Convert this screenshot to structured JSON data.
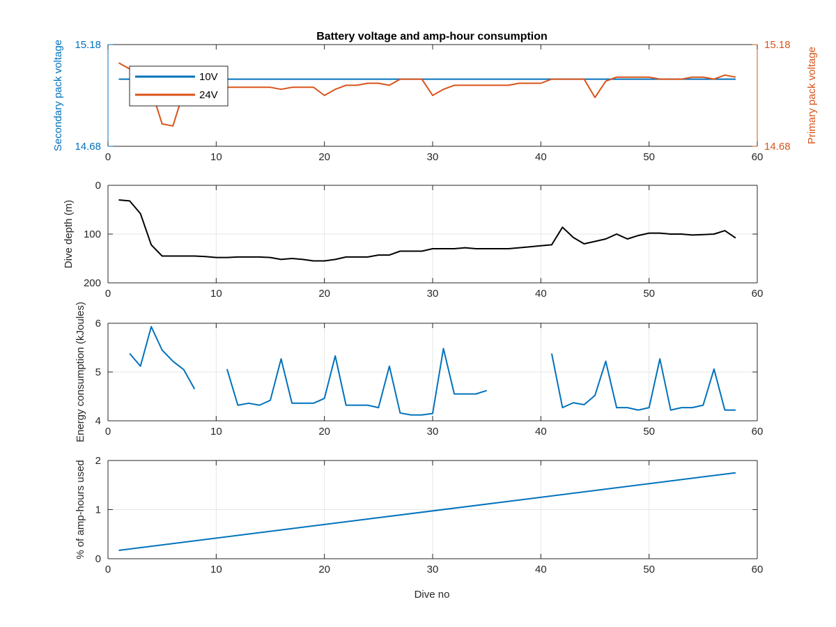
{
  "figure": {
    "title": "Battery voltage and amp-hour consumption",
    "xlabel": "Dive no"
  },
  "colors": {
    "blue": "#0072bd",
    "orange": "#d95319",
    "black": "#000000",
    "grid": "#e6e6e6",
    "axis": "#262626"
  },
  "chart_data": [
    {
      "type": "line",
      "title": "Battery voltage and amp-hour consumption",
      "xlabel": "",
      "ylabel_left": "Secondary pack voltage",
      "ylabel_right": "Primary pack voltage",
      "xlim": [
        0,
        60
      ],
      "ylim_left": [
        14.68,
        15.18
      ],
      "ylim_right": [
        14.68,
        15.18
      ],
      "xticks": [
        0,
        10,
        20,
        30,
        40,
        50,
        60
      ],
      "yticks_left": [
        "14.68",
        "15.18"
      ],
      "yticks_right": [
        "14.68",
        "15.18"
      ],
      "grid": false,
      "legend": {
        "placement": "top-left",
        "entries": [
          "10V",
          "24V"
        ]
      },
      "series": [
        {
          "name": "10V",
          "axis": "left",
          "color": "#0072bd",
          "x": [
            1,
            58
          ],
          "y": [
            15.01,
            15.01
          ]
        },
        {
          "name": "24V",
          "axis": "right",
          "color": "#d95319",
          "x": [
            1,
            2,
            3,
            4,
            5,
            6,
            7,
            8,
            9,
            10,
            11,
            12,
            13,
            14,
            15,
            16,
            17,
            18,
            19,
            20,
            21,
            22,
            23,
            24,
            25,
            26,
            27,
            28,
            29,
            30,
            31,
            32,
            33,
            34,
            35,
            36,
            37,
            38,
            39,
            40,
            41,
            42,
            43,
            44,
            45,
            46,
            47,
            48,
            49,
            50,
            51,
            52,
            53,
            54,
            55,
            56,
            57,
            58
          ],
          "y": [
            15.09,
            15.06,
            14.97,
            14.96,
            14.79,
            14.78,
            14.95,
            14.96,
            14.97,
            14.97,
            14.97,
            14.97,
            14.97,
            14.97,
            14.97,
            14.96,
            14.97,
            14.97,
            14.97,
            14.93,
            14.96,
            14.98,
            14.98,
            14.99,
            14.99,
            14.98,
            15.01,
            15.01,
            15.01,
            14.93,
            14.96,
            14.98,
            14.98,
            14.98,
            14.98,
            14.98,
            14.98,
            14.99,
            14.99,
            14.99,
            15.01,
            15.01,
            15.01,
            15.01,
            14.92,
            15.0,
            15.02,
            15.02,
            15.02,
            15.02,
            15.01,
            15.01,
            15.01,
            15.02,
            15.02,
            15.01,
            15.03,
            15.02
          ]
        }
      ]
    },
    {
      "type": "line",
      "ylabel": "Dive depth (m)",
      "xlim": [
        0,
        60
      ],
      "ylim": [
        0,
        200
      ],
      "yreversed": true,
      "xticks": [
        0,
        10,
        20,
        30,
        40,
        50,
        60
      ],
      "yticks": [
        0,
        100,
        200
      ],
      "grid": true,
      "series": [
        {
          "color": "#000000",
          "x": [
            1,
            2,
            3,
            4,
            5,
            6,
            7,
            8,
            9,
            10,
            11,
            12,
            13,
            14,
            15,
            16,
            17,
            18,
            19,
            20,
            21,
            22,
            23,
            24,
            25,
            26,
            27,
            28,
            29,
            30,
            31,
            32,
            33,
            34,
            35,
            36,
            37,
            38,
            39,
            40,
            41,
            42,
            43,
            44,
            45,
            46,
            47,
            48,
            49,
            50,
            51,
            52,
            53,
            54,
            55,
            56,
            57,
            58
          ],
          "y": [
            30,
            32,
            58,
            122,
            145,
            145,
            145,
            145,
            146,
            148,
            148,
            147,
            147,
            147,
            148,
            152,
            150,
            152,
            155,
            155,
            152,
            147,
            147,
            147,
            143,
            143,
            135,
            135,
            135,
            130,
            130,
            130,
            128,
            130,
            130,
            130,
            130,
            128,
            126,
            124,
            122,
            86,
            107,
            120,
            115,
            110,
            100,
            110,
            103,
            98,
            98,
            100,
            100,
            102,
            101,
            100,
            93,
            108
          ]
        }
      ]
    },
    {
      "type": "line",
      "ylabel": "Energy consumption (kJoules)",
      "xlim": [
        0,
        60
      ],
      "ylim": [
        4,
        6
      ],
      "xticks": [
        0,
        10,
        20,
        30,
        40,
        50,
        60
      ],
      "yticks": [
        4,
        5,
        6
      ],
      "grid": true,
      "series": [
        {
          "color": "#0072bd",
          "x": [
            1,
            2,
            3,
            4,
            5,
            6,
            7,
            8,
            9,
            10,
            11,
            12,
            13,
            14,
            15,
            16,
            17,
            18,
            19,
            20,
            21,
            22,
            23,
            24,
            25,
            26,
            27,
            28,
            29,
            30,
            31,
            32,
            33,
            34,
            35,
            36,
            37,
            38,
            39,
            40,
            41,
            42,
            43,
            44,
            45,
            46,
            47,
            48,
            49,
            50,
            51,
            52,
            53,
            54,
            55,
            56,
            57,
            58
          ],
          "y": [
            null,
            5.38,
            5.12,
            5.93,
            5.45,
            5.22,
            5.05,
            4.65,
            null,
            null,
            5.06,
            4.32,
            4.36,
            4.32,
            4.42,
            5.27,
            4.36,
            4.36,
            4.36,
            4.46,
            5.33,
            4.32,
            4.32,
            4.32,
            4.27,
            5.12,
            4.16,
            4.12,
            4.12,
            4.15,
            5.48,
            4.55,
            4.55,
            4.55,
            4.62,
            null,
            null,
            null,
            null,
            null,
            5.38,
            4.27,
            4.37,
            4.33,
            4.52,
            5.22,
            4.27,
            4.27,
            4.22,
            4.27,
            5.27,
            4.22,
            4.27,
            4.27,
            4.32,
            5.06,
            4.22,
            4.22
          ]
        }
      ]
    },
    {
      "type": "line",
      "ylabel": "% of amp-hours used",
      "xlabel": "Dive no",
      "xlim": [
        0,
        60
      ],
      "ylim": [
        0,
        2
      ],
      "xticks": [
        0,
        10,
        20,
        30,
        40,
        50,
        60
      ],
      "yticks": [
        0,
        1,
        2
      ],
      "grid": true,
      "series": [
        {
          "color": "#0072bd",
          "x": [
            1,
            58
          ],
          "y": [
            0.17,
            1.75
          ]
        }
      ]
    }
  ]
}
